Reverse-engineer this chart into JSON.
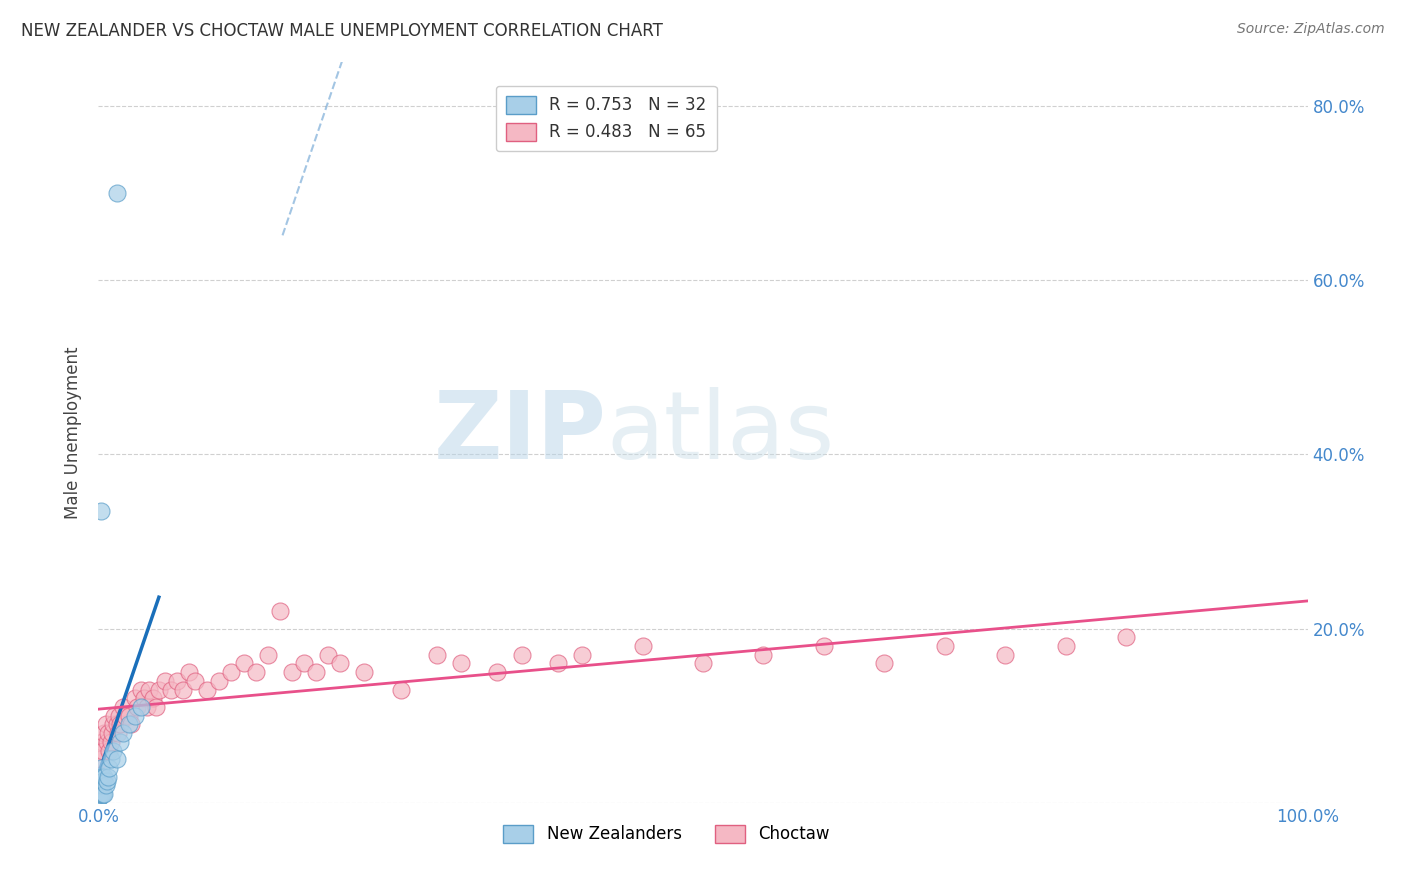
{
  "title": "NEW ZEALANDER VS CHOCTAW MALE UNEMPLOYMENT CORRELATION CHART",
  "source": "Source: ZipAtlas.com",
  "ylabel": "Male Unemployment",
  "nz_color": "#a8cfe8",
  "nz_edge_color": "#5a9dc8",
  "choctaw_color": "#f5b8c4",
  "choctaw_edge_color": "#e06080",
  "nz_line_color": "#1a6fba",
  "choctaw_line_color": "#e8508a",
  "legend_nz_label": "R = 0.753   N = 32",
  "legend_choctaw_label": "R = 0.483   N = 65",
  "watermark_zip": "ZIP",
  "watermark_atlas": "atlas",
  "background_color": "#ffffff",
  "grid_color": "#d0d0d0",
  "nz_x": [
    0.0005,
    0.001,
    0.001,
    0.001,
    0.001,
    0.0015,
    0.0015,
    0.002,
    0.002,
    0.002,
    0.0025,
    0.003,
    0.003,
    0.003,
    0.004,
    0.004,
    0.005,
    0.005,
    0.006,
    0.007,
    0.008,
    0.009,
    0.01,
    0.012,
    0.015,
    0.018,
    0.02,
    0.025,
    0.03,
    0.035,
    0.015,
    0.002
  ],
  "nz_y": [
    0.005,
    0.008,
    0.01,
    0.02,
    0.03,
    0.01,
    0.02,
    0.01,
    0.02,
    0.04,
    0.02,
    0.01,
    0.02,
    0.03,
    0.01,
    0.025,
    0.01,
    0.03,
    0.02,
    0.025,
    0.03,
    0.04,
    0.05,
    0.06,
    0.05,
    0.07,
    0.08,
    0.09,
    0.1,
    0.11,
    0.7,
    0.335
  ],
  "choctaw_x": [
    0.001,
    0.002,
    0.003,
    0.004,
    0.005,
    0.006,
    0.007,
    0.008,
    0.009,
    0.01,
    0.011,
    0.012,
    0.013,
    0.015,
    0.016,
    0.017,
    0.018,
    0.02,
    0.022,
    0.025,
    0.027,
    0.03,
    0.032,
    0.035,
    0.038,
    0.04,
    0.042,
    0.045,
    0.048,
    0.05,
    0.055,
    0.06,
    0.065,
    0.07,
    0.075,
    0.08,
    0.09,
    0.1,
    0.11,
    0.12,
    0.13,
    0.14,
    0.15,
    0.16,
    0.17,
    0.18,
    0.19,
    0.2,
    0.22,
    0.25,
    0.28,
    0.3,
    0.33,
    0.35,
    0.38,
    0.4,
    0.45,
    0.5,
    0.55,
    0.6,
    0.65,
    0.7,
    0.75,
    0.8,
    0.85
  ],
  "choctaw_y": [
    0.06,
    0.05,
    0.07,
    0.06,
    0.08,
    0.09,
    0.07,
    0.08,
    0.06,
    0.07,
    0.08,
    0.09,
    0.1,
    0.09,
    0.08,
    0.1,
    0.09,
    0.11,
    0.1,
    0.1,
    0.09,
    0.12,
    0.11,
    0.13,
    0.12,
    0.11,
    0.13,
    0.12,
    0.11,
    0.13,
    0.14,
    0.13,
    0.14,
    0.13,
    0.15,
    0.14,
    0.13,
    0.14,
    0.15,
    0.16,
    0.15,
    0.17,
    0.22,
    0.15,
    0.16,
    0.15,
    0.17,
    0.16,
    0.15,
    0.13,
    0.17,
    0.16,
    0.15,
    0.17,
    0.16,
    0.17,
    0.18,
    0.16,
    0.17,
    0.18,
    0.16,
    0.18,
    0.17,
    0.18,
    0.19
  ],
  "xlim": [
    0.0,
    1.0
  ],
  "ylim": [
    0.0,
    0.85
  ],
  "ytick_positions": [
    0.0,
    0.2,
    0.4,
    0.6,
    0.8
  ],
  "right_ytick_labels": [
    "",
    "20.0%",
    "40.0%",
    "60.0%",
    "80.0%"
  ]
}
